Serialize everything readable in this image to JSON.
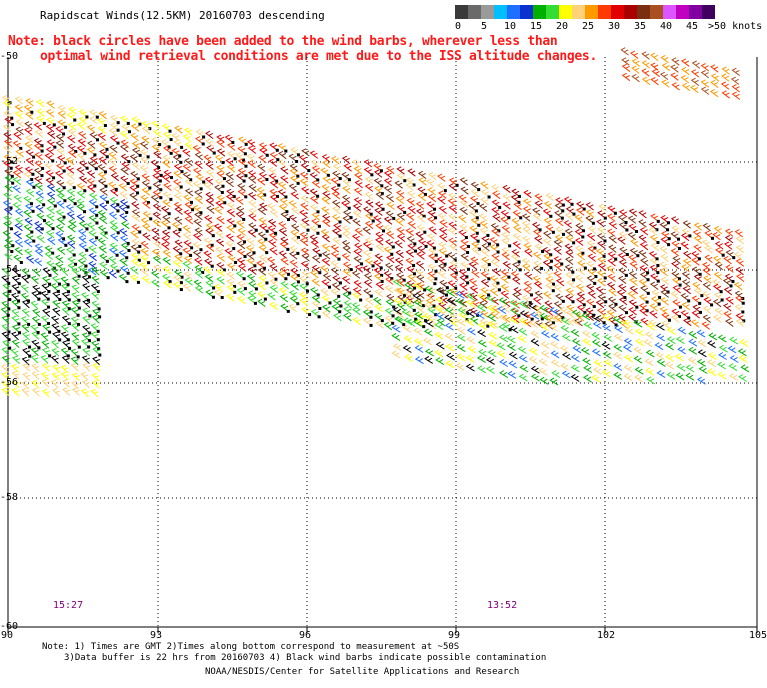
{
  "title": "Rapidscat Winds(12.5KM) 20160703 descending",
  "note_lines": [
    "Note: black circles have been added to the wind barbs, wherever less than",
    "optimal wind retrieval conditions are met due to the ISS altitude changes."
  ],
  "legend": {
    "unit_label": ">50 knots",
    "tick_labels": [
      "0",
      "5",
      "10",
      "15",
      "20",
      "25",
      "30",
      "35",
      "40",
      "45"
    ],
    "colors": [
      "#3a3a3a",
      "#6a6a6a",
      "#9a9a9a",
      "#00bfff",
      "#1e6fff",
      "#0a30d0",
      "#00b000",
      "#33dd33",
      "#ffff00",
      "#ffd27a",
      "#ff9a00",
      "#ff3a00",
      "#e00000",
      "#aa0000",
      "#7a3010",
      "#aa5020",
      "#dd55ff",
      "#c000c0",
      "#8000a0",
      "#400060"
    ]
  },
  "axes": {
    "lat_labels": [
      "-50",
      "-52",
      "-54",
      "-56",
      "-58",
      "-60"
    ],
    "lon_labels": [
      "90",
      "93",
      "96",
      "99",
      "102",
      "105"
    ]
  },
  "time_labels": [
    "15:27",
    "13:52"
  ],
  "footer": {
    "line1": "Note: 1) Times are GMT 2)Times along bottom correspond to measurement at ~50S",
    "line2": "3)Data buffer is 22 hrs from 20160703 4) Black wind barbs indicate possible contamination",
    "credit": "NOAA/NESDIS/Center for Satellite Applications and Research"
  }
}
